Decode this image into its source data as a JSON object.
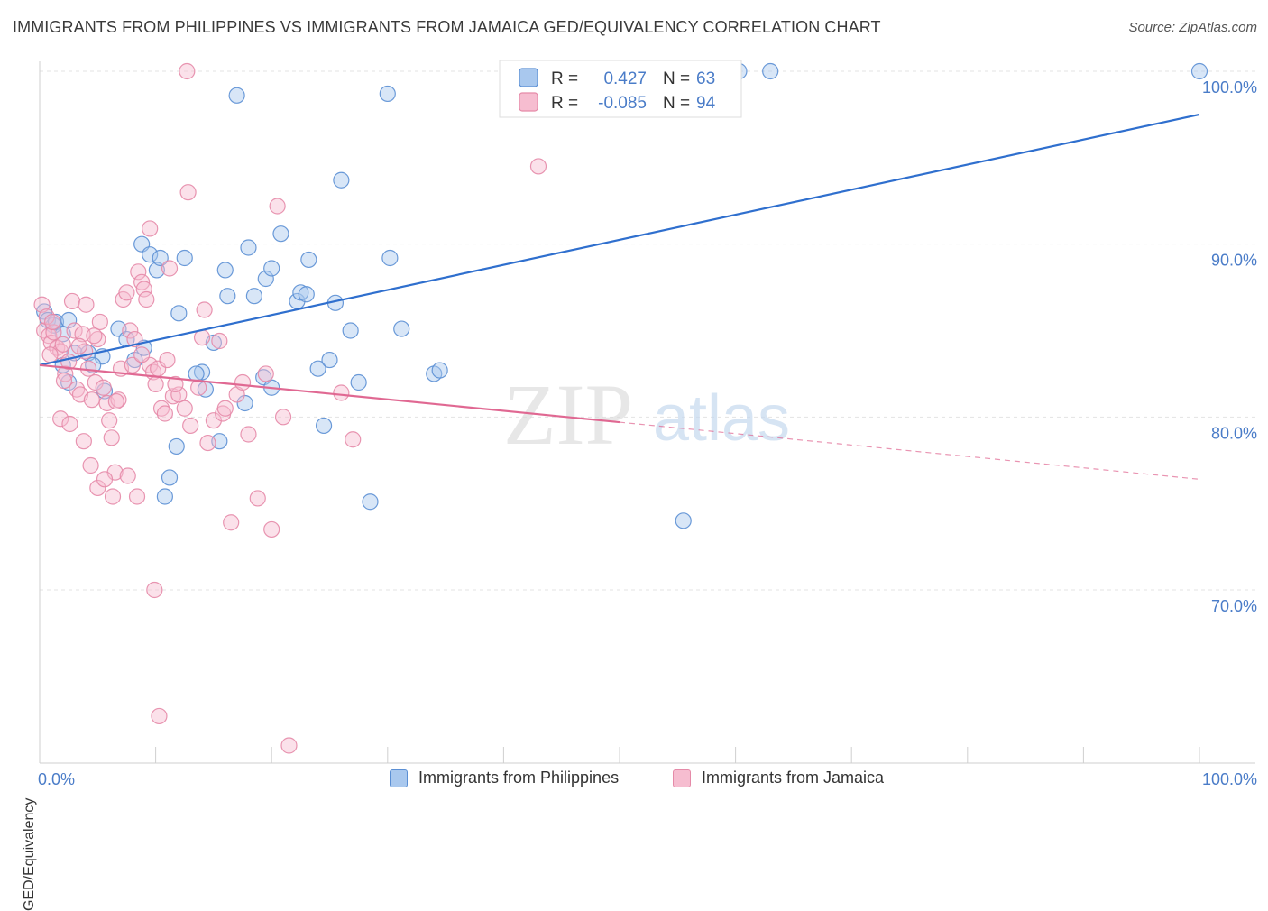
{
  "title": "IMMIGRANTS FROM PHILIPPINES VS IMMIGRANTS FROM JAMAICA GED/EQUIVALENCY CORRELATION CHART",
  "source": "Source: ZipAtlas.com",
  "watermark": {
    "zip": "ZIP",
    "atlas": "atlas"
  },
  "colors": {
    "blue_fill": "#a9c8ee",
    "blue_stroke": "#5b8fd4",
    "blue_line": "#2f6fce",
    "pink_fill": "#f6bdd0",
    "pink_stroke": "#e58aa8",
    "pink_line": "#e06892",
    "tick_label": "#4a7cc8",
    "grid": "#e3e3e3"
  },
  "legend_stats": [
    {
      "r_label": "R =",
      "r_value": "0.427",
      "n_label": "N =",
      "n_value": "63"
    },
    {
      "r_label": "R =",
      "r_value": "-0.085",
      "n_label": "N =",
      "n_value": "94"
    }
  ],
  "chart_data": {
    "type": "scatter",
    "title": "IMMIGRANTS FROM PHILIPPINES VS IMMIGRANTS FROM JAMAICA GED/EQUIVALENCY CORRELATION CHART",
    "xlabel": "",
    "ylabel": "GED/Equivalency",
    "xlim": [
      0,
      100
    ],
    "ylim": [
      60.5,
      101.5
    ],
    "x_tick_labels": [
      {
        "value": 0,
        "label": "0.0%"
      },
      {
        "value": 100,
        "label": "100.0%"
      }
    ],
    "y_tick_labels": [
      {
        "value": 100,
        "label": "100.0%"
      },
      {
        "value": 90,
        "label": "90.0%"
      },
      {
        "value": 80,
        "label": "80.0%"
      },
      {
        "value": 70,
        "label": "70.0%"
      }
    ],
    "grid": true,
    "legend_position": "top-center",
    "series": [
      {
        "name": "Immigrants from Philippines",
        "color": "blue",
        "trend": {
          "x": [
            0,
            100
          ],
          "y": [
            83.0,
            97.5
          ],
          "dashed_from": null
        },
        "points": [
          [
            0.4,
            86.1
          ],
          [
            0.7,
            85.6
          ],
          [
            1.2,
            85.3
          ],
          [
            1.4,
            85.5
          ],
          [
            2.5,
            85.6
          ],
          [
            2.0,
            84.8
          ],
          [
            3.0,
            83.7
          ],
          [
            4.2,
            83.7
          ],
          [
            5.4,
            83.5
          ],
          [
            6.8,
            85.1
          ],
          [
            7.5,
            84.5
          ],
          [
            8.2,
            83.3
          ],
          [
            5.6,
            81.5
          ],
          [
            4.6,
            83.0
          ],
          [
            2.5,
            82.0
          ],
          [
            8.8,
            90.0
          ],
          [
            9.5,
            89.4
          ],
          [
            10.1,
            88.5
          ],
          [
            10.4,
            89.2
          ],
          [
            12.5,
            89.2
          ],
          [
            12.0,
            86.0
          ],
          [
            14.0,
            82.6
          ],
          [
            13.5,
            82.5
          ],
          [
            14.3,
            81.6
          ],
          [
            15.0,
            84.3
          ],
          [
            15.5,
            78.6
          ],
          [
            11.8,
            78.3
          ],
          [
            11.2,
            76.5
          ],
          [
            10.8,
            75.4
          ],
          [
            16.0,
            88.5
          ],
          [
            16.2,
            87.0
          ],
          [
            17.0,
            98.6
          ],
          [
            17.7,
            80.8
          ],
          [
            18.0,
            89.8
          ],
          [
            18.5,
            87.0
          ],
          [
            19.3,
            82.3
          ],
          [
            19.5,
            88.0
          ],
          [
            20.0,
            81.7
          ],
          [
            20.0,
            88.6
          ],
          [
            20.8,
            90.6
          ],
          [
            22.2,
            86.7
          ],
          [
            22.5,
            87.2
          ],
          [
            23.0,
            87.1
          ],
          [
            23.2,
            89.1
          ],
          [
            24.0,
            82.8
          ],
          [
            24.5,
            79.5
          ],
          [
            25.0,
            83.3
          ],
          [
            25.5,
            86.6
          ],
          [
            26.0,
            93.7
          ],
          [
            26.8,
            85.0
          ],
          [
            27.5,
            82.0
          ],
          [
            28.5,
            75.1
          ],
          [
            30.0,
            98.7
          ],
          [
            30.2,
            89.2
          ],
          [
            31.2,
            85.1
          ],
          [
            34.0,
            82.5
          ],
          [
            34.5,
            82.7
          ],
          [
            55.5,
            74.0
          ],
          [
            60.3,
            100.0
          ],
          [
            63.0,
            100.0
          ],
          [
            100.0,
            100.0
          ],
          [
            2.0,
            83.0
          ],
          [
            9.0,
            84.0
          ]
        ]
      },
      {
        "name": "Immigrants from Jamaica",
        "color": "pink",
        "trend": {
          "x": [
            0,
            100
          ],
          "y": [
            83.0,
            76.4
          ],
          "dashed_from": 50
        },
        "points": [
          [
            0.2,
            86.5
          ],
          [
            0.4,
            85.0
          ],
          [
            0.6,
            85.8
          ],
          [
            0.8,
            84.7
          ],
          [
            1.0,
            84.3
          ],
          [
            1.2,
            84.9
          ],
          [
            1.5,
            84.0
          ],
          [
            1.8,
            83.8
          ],
          [
            2.0,
            84.2
          ],
          [
            2.2,
            82.5
          ],
          [
            2.5,
            83.2
          ],
          [
            2.8,
            86.7
          ],
          [
            3.0,
            85.0
          ],
          [
            3.2,
            81.6
          ],
          [
            3.5,
            81.3
          ],
          [
            3.7,
            84.8
          ],
          [
            3.9,
            83.8
          ],
          [
            4.0,
            86.5
          ],
          [
            4.2,
            82.8
          ],
          [
            4.5,
            81.0
          ],
          [
            4.8,
            82.0
          ],
          [
            5.0,
            84.5
          ],
          [
            5.2,
            85.5
          ],
          [
            5.5,
            81.7
          ],
          [
            5.8,
            80.8
          ],
          [
            6.0,
            79.8
          ],
          [
            6.2,
            78.8
          ],
          [
            6.5,
            76.8
          ],
          [
            6.8,
            81.0
          ],
          [
            7.0,
            82.8
          ],
          [
            7.2,
            86.8
          ],
          [
            7.5,
            87.2
          ],
          [
            7.8,
            85.0
          ],
          [
            8.0,
            83.0
          ],
          [
            8.2,
            84.5
          ],
          [
            8.5,
            88.4
          ],
          [
            8.8,
            87.8
          ],
          [
            9.0,
            87.4
          ],
          [
            9.2,
            86.8
          ],
          [
            9.5,
            83.0
          ],
          [
            9.8,
            82.6
          ],
          [
            10.0,
            81.9
          ],
          [
            10.2,
            82.8
          ],
          [
            10.5,
            80.5
          ],
          [
            10.8,
            80.2
          ],
          [
            11.0,
            83.3
          ],
          [
            11.2,
            88.6
          ],
          [
            11.5,
            81.2
          ],
          [
            12.0,
            81.3
          ],
          [
            12.5,
            80.5
          ],
          [
            12.8,
            93.0
          ],
          [
            13.0,
            79.5
          ],
          [
            14.0,
            84.6
          ],
          [
            14.2,
            86.2
          ],
          [
            14.5,
            78.5
          ],
          [
            15.0,
            79.8
          ],
          [
            15.5,
            84.4
          ],
          [
            15.8,
            80.2
          ],
          [
            16.0,
            80.5
          ],
          [
            16.5,
            73.9
          ],
          [
            17.0,
            81.3
          ],
          [
            17.5,
            82.0
          ],
          [
            18.0,
            79.0
          ],
          [
            18.8,
            75.3
          ],
          [
            19.5,
            82.5
          ],
          [
            20.0,
            73.5
          ],
          [
            20.5,
            92.2
          ],
          [
            21.0,
            80.0
          ],
          [
            21.5,
            61.0
          ],
          [
            26.0,
            81.4
          ],
          [
            27.0,
            78.7
          ],
          [
            43.0,
            94.5
          ],
          [
            1.8,
            79.9
          ],
          [
            2.6,
            79.6
          ],
          [
            3.8,
            78.6
          ],
          [
            4.4,
            77.2
          ],
          [
            5.0,
            75.9
          ],
          [
            5.6,
            76.4
          ],
          [
            6.3,
            75.4
          ],
          [
            7.6,
            76.6
          ],
          [
            8.4,
            75.4
          ],
          [
            9.5,
            90.9
          ],
          [
            9.9,
            70.0
          ],
          [
            12.7,
            100.0
          ],
          [
            10.3,
            62.7
          ],
          [
            3.4,
            84.1
          ],
          [
            2.1,
            82.1
          ],
          [
            4.7,
            84.7
          ],
          [
            6.6,
            80.9
          ],
          [
            8.8,
            83.6
          ],
          [
            1.1,
            85.5
          ],
          [
            0.9,
            83.6
          ],
          [
            11.7,
            81.9
          ],
          [
            13.7,
            81.7
          ]
        ]
      }
    ]
  },
  "legend_bottom": [
    {
      "label": "Immigrants from Philippines",
      "color": "blue"
    },
    {
      "label": "Immigrants from Jamaica",
      "color": "pink"
    }
  ]
}
